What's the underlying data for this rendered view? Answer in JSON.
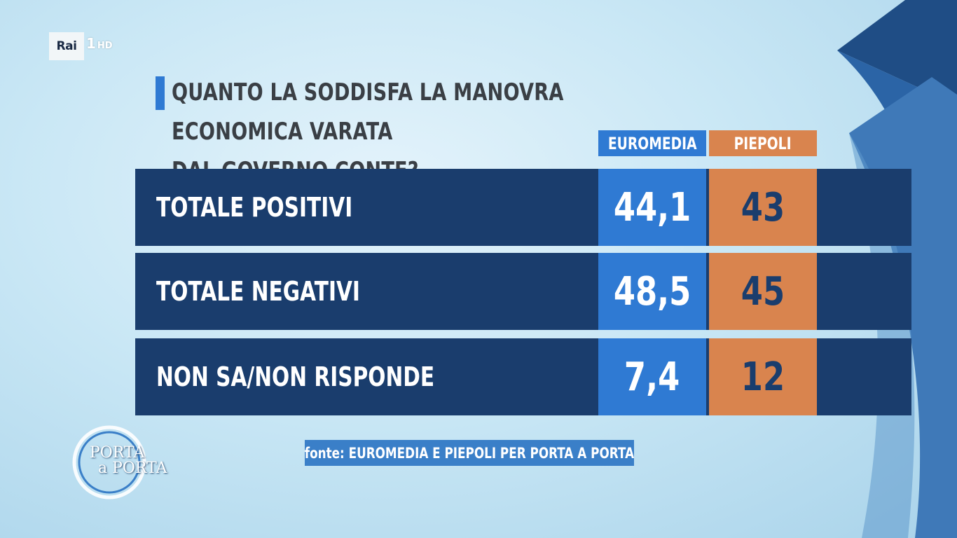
{
  "channel": {
    "logo": "Rai",
    "number": "1",
    "suffix": "HD"
  },
  "title": "QUANTO LA SODDISFA LA MANOVRA ECONOMICA VARATA DAL GOVERNO CONTE?",
  "title_lines": [
    "QUANTO LA SODDISFA LA MANOVRA ECONOMICA VARATA",
    "DAL GOVERNO CONTE?"
  ],
  "colors": {
    "euromedia": "#2f7ad3",
    "piepoli": "#d9844e",
    "row": "#1a3d6d"
  },
  "chart_data": {
    "type": "table",
    "columns": [
      "EUROMEDIA",
      "PIEPOLI"
    ],
    "rows": [
      {
        "label": "TOTALE POSITIVI",
        "values": [
          "44,1",
          "43"
        ]
      },
      {
        "label": "TOTALE NEGATIVI",
        "values": [
          "48,5",
          "45"
        ]
      },
      {
        "label": "NON SA/NON RISPONDE",
        "values": [
          "7,4",
          "12"
        ]
      }
    ]
  },
  "source": "fonte: EUROMEDIA E PIEPOLI PER PORTA A PORTA",
  "show_logo": {
    "line1": "PORTA",
    "line2": "a PORTA",
    "icon": "porta-a-porta-ring-icon"
  }
}
